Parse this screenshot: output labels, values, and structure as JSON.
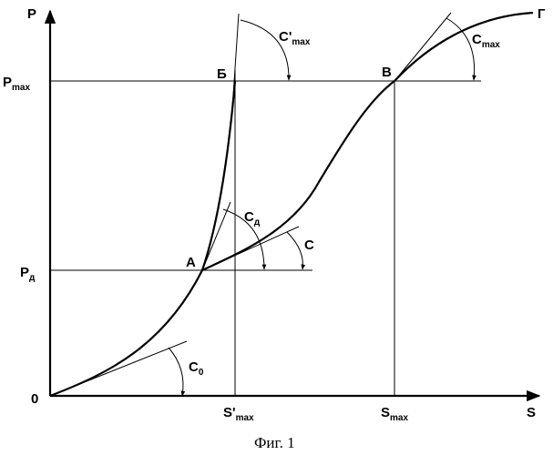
{
  "axes": {
    "y_label": "P",
    "x_label": "S",
    "origin_label": "0"
  },
  "y_ticks": {
    "pmax_main": "P",
    "pmax_sub": "max",
    "pd_main": "P",
    "pd_sub": "д"
  },
  "x_ticks": {
    "smax_prime_main": "S'",
    "smax_prime_sub": "max",
    "smax_main": "S",
    "smax_sub": "max"
  },
  "points": {
    "a": "А",
    "b": "Б",
    "v": "В",
    "g": "Г"
  },
  "angles": {
    "c0_main": "C",
    "c0_sub": "0",
    "cd_main": "C",
    "cd_sub": "д",
    "c_main": "C",
    "cmax_prime_main": "C'",
    "cmax_prime_sub": "max",
    "cmax_main": "C",
    "cmax_sub": "max"
  },
  "caption": "Фиг. 1"
}
